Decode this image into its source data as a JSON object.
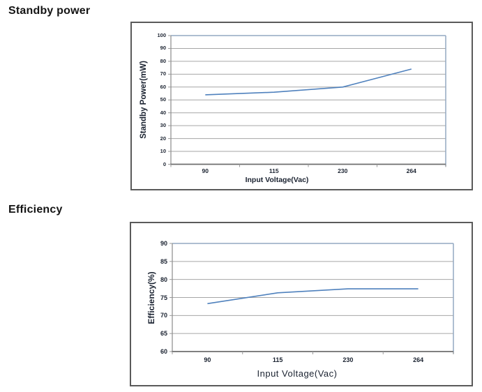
{
  "page": {
    "background": "#ffffff"
  },
  "sections": [
    {
      "heading": "Standby power"
    },
    {
      "heading": "Efficiency"
    }
  ],
  "chart_data": [
    {
      "type": "line",
      "title": "Standby power",
      "categories": [
        "90",
        "115",
        "230",
        "264"
      ],
      "series": [
        {
          "name": "Standby Power",
          "values": [
            54,
            56,
            60,
            74
          ]
        }
      ],
      "xlabel": "Input Voltage(Vac)",
      "ylabel": "Standby Power(mW)",
      "ylim": [
        0,
        100
      ],
      "ytick_step": 10,
      "yticks": [
        0,
        10,
        20,
        30,
        40,
        50,
        60,
        70,
        80,
        90,
        100
      ],
      "grid": true,
      "legend_position": "none",
      "line_color": "#4f81bd",
      "plot_border_color": "#94a9c2",
      "gridline_color": "#a6a6a6",
      "axis_color": "#6e6e6e",
      "tick_color": "#999999",
      "text_color": "#1a2230"
    },
    {
      "type": "line",
      "title": "Efficiency",
      "categories": [
        "90",
        "115",
        "230",
        "264"
      ],
      "series": [
        {
          "name": "Efficiency",
          "values": [
            73.3,
            76.3,
            77.4,
            77.4
          ]
        }
      ],
      "xlabel": "Input Voltage(Vac)",
      "ylabel": "Efficiency(%)",
      "ylim": [
        60,
        90
      ],
      "ytick_step": 5,
      "yticks": [
        60,
        65,
        70,
        75,
        80,
        85,
        90
      ],
      "grid": true,
      "legend_position": "none",
      "line_color": "#4f81bd",
      "plot_border_color": "#94a9c2",
      "gridline_color": "#a6a6a6",
      "axis_color": "#6e6e6e",
      "tick_color": "#999999",
      "text_color": "#1a2230"
    }
  ]
}
